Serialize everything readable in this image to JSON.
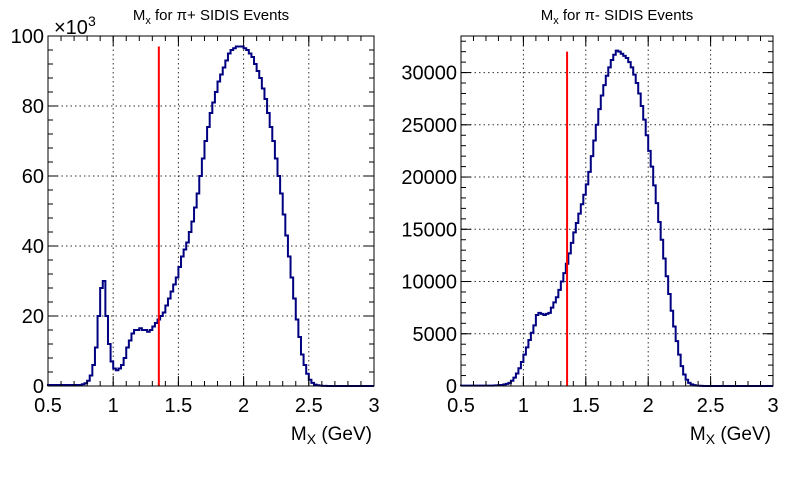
{
  "chart_data": [
    {
      "type": "histogram",
      "title_main": "M",
      "title_sub": "x",
      "title_rest": " for π+ SIDIS Events",
      "xlabel_main": "M",
      "xlabel_sub": "X",
      "xlabel_rest": " (GeV)",
      "exponent_label": "×10",
      "exponent_power": "3",
      "xlim": [
        0.5,
        3.0
      ],
      "ylim": [
        0,
        100
      ],
      "xticks": [
        "0.5",
        "1",
        "1.5",
        "2",
        "2.5",
        "3"
      ],
      "yticks": [
        "0",
        "20",
        "40",
        "60",
        "80",
        "100"
      ],
      "grid": true,
      "cut_x": 1.35,
      "cut_top": 97,
      "bin_width": 0.02,
      "bins_x": [
        0.5,
        0.52,
        0.54,
        0.56,
        0.58,
        0.6,
        0.62,
        0.64,
        0.66,
        0.68,
        0.7,
        0.72,
        0.74,
        0.76,
        0.78,
        0.8,
        0.82,
        0.84,
        0.86,
        0.88,
        0.9,
        0.92,
        0.94,
        0.96,
        0.98,
        1.0,
        1.02,
        1.04,
        1.06,
        1.08,
        1.1,
        1.12,
        1.14,
        1.16,
        1.18,
        1.2,
        1.22,
        1.24,
        1.26,
        1.28,
        1.3,
        1.32,
        1.34,
        1.36,
        1.38,
        1.4,
        1.42,
        1.44,
        1.46,
        1.48,
        1.5,
        1.52,
        1.54,
        1.56,
        1.58,
        1.6,
        1.62,
        1.64,
        1.66,
        1.68,
        1.7,
        1.72,
        1.74,
        1.76,
        1.78,
        1.8,
        1.82,
        1.84,
        1.86,
        1.88,
        1.9,
        1.92,
        1.94,
        1.96,
        1.98,
        2.0,
        2.02,
        2.04,
        2.06,
        2.08,
        2.1,
        2.12,
        2.14,
        2.16,
        2.18,
        2.2,
        2.22,
        2.24,
        2.26,
        2.28,
        2.3,
        2.32,
        2.34,
        2.36,
        2.38,
        2.4,
        2.42,
        2.44,
        2.46,
        2.48,
        2.5,
        2.52,
        2.54,
        2.56,
        2.58,
        2.6,
        2.62,
        2.64,
        2.66,
        2.68,
        2.7,
        2.72,
        2.74,
        2.76,
        2.78,
        2.8,
        2.82,
        2.84,
        2.86,
        2.88,
        2.9,
        2.92,
        2.94,
        2.96,
        2.98
      ],
      "bins_y": [
        0.3,
        0.3,
        0.3,
        0.3,
        0.3,
        0.3,
        0.3,
        0.3,
        0.3,
        0.3,
        0.3,
        0.3,
        0.3,
        0.5,
        0.8,
        1.5,
        3,
        6,
        11,
        20,
        28,
        30,
        20,
        12,
        7,
        5,
        4.5,
        5,
        6,
        8,
        11,
        13,
        15,
        16,
        16,
        16.5,
        16,
        16,
        15.5,
        16,
        17,
        18,
        19,
        20,
        21,
        23,
        25,
        27,
        29,
        31,
        34,
        37,
        39,
        41,
        44,
        47,
        51,
        55,
        60,
        65,
        70,
        74,
        78,
        81,
        84,
        87,
        89,
        91,
        93,
        95,
        96,
        96.5,
        97,
        97,
        97,
        96.5,
        96,
        95,
        94,
        92,
        90,
        88,
        85,
        82,
        78,
        74,
        70,
        65,
        60,
        55,
        49,
        43,
        37,
        31,
        25,
        19,
        14,
        9,
        6,
        3.5,
        1.8,
        0.9,
        0.4,
        0.2,
        0.1,
        0.05,
        0.02,
        0.01,
        0,
        0,
        0,
        0,
        0,
        0,
        0,
        0,
        0,
        0,
        0,
        0,
        0,
        0,
        0,
        0,
        0
      ]
    },
    {
      "type": "histogram",
      "title_main": "M",
      "title_sub": "x",
      "title_rest": " for π- SIDIS Events",
      "xlabel_main": "M",
      "xlabel_sub": "X",
      "xlabel_rest": " (GeV)",
      "xlim": [
        0.5,
        3.0
      ],
      "ylim": [
        0,
        33500
      ],
      "xticks": [
        "0.5",
        "1",
        "1.5",
        "2",
        "2.5",
        "3"
      ],
      "yticks": [
        "0",
        "5000",
        "10000",
        "15000",
        "20000",
        "25000",
        "30000"
      ],
      "grid": true,
      "cut_x": 1.35,
      "cut_top": 32000,
      "bin_width": 0.02,
      "bins_x": [
        0.5,
        0.52,
        0.54,
        0.56,
        0.58,
        0.6,
        0.62,
        0.64,
        0.66,
        0.68,
        0.7,
        0.72,
        0.74,
        0.76,
        0.78,
        0.8,
        0.82,
        0.84,
        0.86,
        0.88,
        0.9,
        0.92,
        0.94,
        0.96,
        0.98,
        1.0,
        1.02,
        1.04,
        1.06,
        1.08,
        1.1,
        1.12,
        1.14,
        1.16,
        1.18,
        1.2,
        1.22,
        1.24,
        1.26,
        1.28,
        1.3,
        1.32,
        1.34,
        1.36,
        1.38,
        1.4,
        1.42,
        1.44,
        1.46,
        1.48,
        1.5,
        1.52,
        1.54,
        1.56,
        1.58,
        1.6,
        1.62,
        1.64,
        1.66,
        1.68,
        1.7,
        1.72,
        1.74,
        1.76,
        1.78,
        1.8,
        1.82,
        1.84,
        1.86,
        1.88,
        1.9,
        1.92,
        1.94,
        1.96,
        1.98,
        2.0,
        2.02,
        2.04,
        2.06,
        2.08,
        2.1,
        2.12,
        2.14,
        2.16,
        2.18,
        2.2,
        2.22,
        2.24,
        2.26,
        2.28,
        2.3,
        2.32,
        2.34,
        2.36,
        2.38,
        2.4,
        2.42,
        2.44,
        2.46,
        2.48,
        2.5,
        2.52,
        2.54,
        2.56,
        2.58,
        2.6,
        2.62,
        2.64,
        2.66,
        2.68,
        2.7,
        2.72,
        2.74,
        2.76,
        2.78,
        2.8,
        2.82,
        2.84,
        2.86,
        2.88,
        2.9,
        2.92,
        2.94,
        2.96,
        2.98
      ],
      "bins_y": [
        30,
        30,
        30,
        30,
        30,
        30,
        30,
        30,
        30,
        30,
        30,
        30,
        40,
        50,
        60,
        80,
        100,
        150,
        200,
        300,
        500,
        800,
        1200,
        1700,
        2300,
        3000,
        3700,
        4400,
        5100,
        5800,
        6800,
        7000,
        6900,
        6800,
        6900,
        7000,
        7500,
        8000,
        8500,
        9200,
        10000,
        10800,
        11700,
        12700,
        13700,
        14700,
        15600,
        16500,
        17400,
        18300,
        19300,
        20500,
        22000,
        23500,
        25000,
        26500,
        27800,
        28800,
        29700,
        30500,
        31200,
        31700,
        32100,
        32000,
        31800,
        31600,
        31400,
        31000,
        30500,
        29800,
        29000,
        28000,
        26800,
        25500,
        24000,
        22500,
        21000,
        19200,
        17500,
        15700,
        14000,
        12200,
        10500,
        8800,
        7200,
        5700,
        4300,
        3000,
        1900,
        1100,
        600,
        300,
        150,
        80,
        40,
        20,
        10,
        5,
        0,
        0,
        0,
        0,
        0,
        0,
        0,
        0,
        0,
        0,
        0,
        0,
        0,
        0,
        0,
        0,
        0,
        0,
        0,
        0,
        0,
        0,
        0,
        0,
        0,
        0,
        0
      ]
    }
  ]
}
